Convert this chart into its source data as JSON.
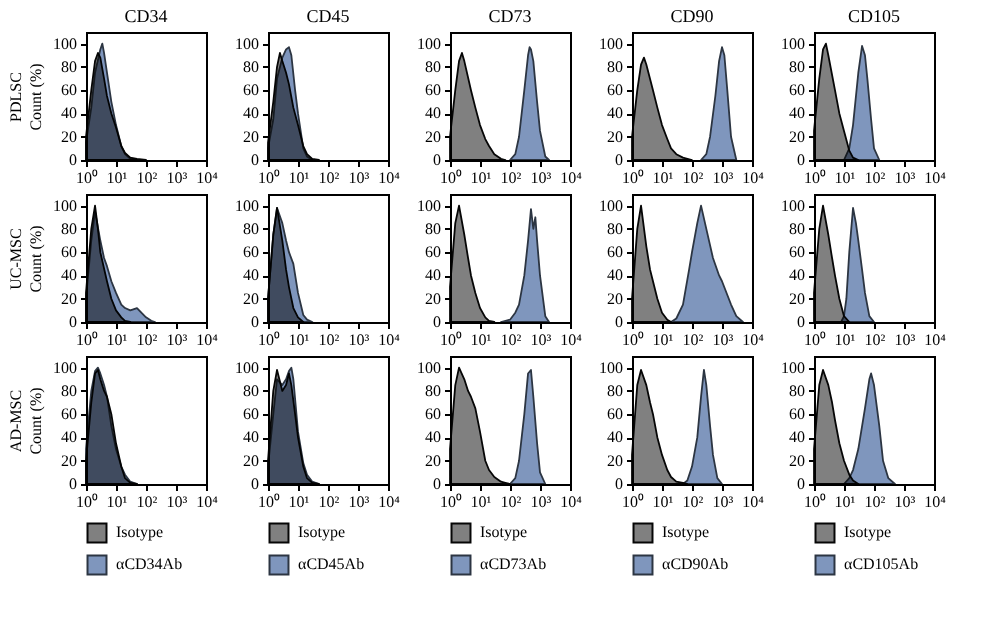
{
  "chart_data": [
    {
      "type": "area",
      "title": "CD34",
      "ylabel": "PDLSC\nCount (%)",
      "xlim": [
        1,
        10000
      ],
      "xticks": [
        {
          "value": 1,
          "label": "10⁰"
        },
        {
          "value": 10,
          "label": "10¹"
        },
        {
          "value": 100,
          "label": "10²"
        },
        {
          "value": 1000,
          "label": "10³"
        },
        {
          "value": 10000,
          "label": "10⁴"
        }
      ],
      "ylim": [
        0,
        110
      ],
      "yticks": [
        0,
        20,
        40,
        60,
        80,
        100
      ],
      "log": "x",
      "series": [
        {
          "color": "#808080",
          "x": [
            1,
            1.5,
            2,
            2.5,
            3,
            4,
            5,
            7,
            10,
            15,
            20,
            30,
            50,
            100
          ],
          "values": [
            20,
            60,
            85,
            92,
            88,
            70,
            55,
            40,
            28,
            12,
            6,
            2,
            1,
            0
          ]
        },
        {
          "color": "#7f96bd",
          "x": [
            1,
            1.5,
            2,
            3,
            3.5,
            4,
            5,
            7,
            10,
            15,
            20,
            30,
            50
          ],
          "values": [
            15,
            45,
            75,
            95,
            100,
            92,
            75,
            50,
            30,
            12,
            5,
            1,
            0
          ]
        }
      ]
    },
    {
      "type": "area",
      "title": "CD45",
      "xlim": [
        1,
        10000
      ],
      "xticks": [
        {
          "value": 1,
          "label": "10⁰"
        },
        {
          "value": 10,
          "label": "10¹"
        },
        {
          "value": 100,
          "label": "10²"
        },
        {
          "value": 1000,
          "label": "10³"
        },
        {
          "value": 10000,
          "label": "10⁴"
        }
      ],
      "ylim": [
        0,
        110
      ],
      "yticks": [
        0,
        20,
        40,
        60,
        80,
        100
      ],
      "log": "x",
      "series": [
        {
          "color": "#808080",
          "x": [
            1,
            1.5,
            2,
            2.5,
            3,
            4,
            5,
            7,
            10,
            15,
            20,
            30,
            50
          ],
          "values": [
            15,
            50,
            80,
            92,
            85,
            75,
            65,
            45,
            30,
            12,
            5,
            1,
            0
          ]
        },
        {
          "color": "#7f96bd",
          "x": [
            1,
            1.5,
            2,
            3,
            4,
            5,
            6,
            8,
            10,
            15,
            20,
            30
          ],
          "values": [
            10,
            35,
            70,
            88,
            95,
            97,
            90,
            60,
            40,
            10,
            3,
            0
          ]
        }
      ]
    },
    {
      "type": "area",
      "title": "CD73",
      "xlim": [
        1,
        10000
      ],
      "xticks": [
        {
          "value": 1,
          "label": "10⁰"
        },
        {
          "value": 10,
          "label": "10¹"
        },
        {
          "value": 100,
          "label": "10²"
        },
        {
          "value": 1000,
          "label": "10³"
        },
        {
          "value": 10000,
          "label": "10⁴"
        }
      ],
      "ylim": [
        0,
        110
      ],
      "yticks": [
        0,
        20,
        40,
        60,
        80,
        100
      ],
      "log": "x",
      "series": [
        {
          "color": "#808080",
          "x": [
            1,
            1.5,
            2,
            2.5,
            3,
            5,
            7,
            10,
            15,
            20,
            30,
            50,
            70
          ],
          "values": [
            20,
            60,
            85,
            92,
            85,
            60,
            45,
            30,
            18,
            12,
            5,
            1,
            0
          ]
        },
        {
          "color": "#7f96bd",
          "x": [
            100,
            150,
            200,
            300,
            400,
            450,
            500,
            600,
            800,
            1000,
            1500,
            2000
          ],
          "values": [
            0,
            5,
            20,
            60,
            90,
            97,
            95,
            85,
            50,
            25,
            3,
            0
          ]
        }
      ]
    },
    {
      "type": "area",
      "title": "CD90",
      "xlim": [
        1,
        10000
      ],
      "xticks": [
        {
          "value": 1,
          "label": "10⁰"
        },
        {
          "value": 10,
          "label": "10¹"
        },
        {
          "value": 100,
          "label": "10²"
        },
        {
          "value": 1000,
          "label": "10³"
        },
        {
          "value": 10000,
          "label": "10⁴"
        }
      ],
      "ylim": [
        0,
        110
      ],
      "yticks": [
        0,
        20,
        40,
        60,
        80,
        100
      ],
      "log": "x",
      "series": [
        {
          "color": "#808080",
          "x": [
            1,
            1.5,
            2,
            2.5,
            3,
            5,
            7,
            10,
            15,
            20,
            30,
            50,
            100
          ],
          "values": [
            20,
            60,
            82,
            88,
            82,
            60,
            45,
            30,
            18,
            10,
            5,
            2,
            0
          ]
        },
        {
          "color": "#7f96bd",
          "x": [
            200,
            300,
            400,
            600,
            800,
            1000,
            1200,
            1500,
            2000,
            3000
          ],
          "values": [
            0,
            5,
            20,
            55,
            85,
            97,
            90,
            60,
            20,
            0
          ]
        }
      ]
    },
    {
      "type": "area",
      "title": "CD105",
      "xlim": [
        1,
        10000
      ],
      "xticks": [
        {
          "value": 1,
          "label": "10⁰"
        },
        {
          "value": 10,
          "label": "10¹"
        },
        {
          "value": 100,
          "label": "10²"
        },
        {
          "value": 1000,
          "label": "10³"
        },
        {
          "value": 10000,
          "label": "10⁴"
        }
      ],
      "ylim": [
        0,
        110
      ],
      "yticks": [
        0,
        20,
        40,
        60,
        80,
        100
      ],
      "log": "x",
      "series": [
        {
          "color": "#808080",
          "x": [
            1,
            1.5,
            2,
            2.5,
            3,
            5,
            7,
            10,
            15,
            20,
            30
          ],
          "values": [
            25,
            70,
            95,
            100,
            90,
            60,
            40,
            25,
            8,
            2,
            0
          ]
        },
        {
          "color": "#7f96bd",
          "x": [
            10,
            15,
            20,
            30,
            40,
            50,
            60,
            80,
            100,
            150
          ],
          "values": [
            0,
            10,
            30,
            75,
            98,
            90,
            70,
            35,
            10,
            0
          ]
        }
      ]
    },
    {
      "type": "area",
      "ylabel": "UC-MSC\nCount (%)",
      "xlim": [
        1,
        10000
      ],
      "xticks": [
        {
          "value": 1,
          "label": "10⁰"
        },
        {
          "value": 10,
          "label": "10¹"
        },
        {
          "value": 100,
          "label": "10²"
        },
        {
          "value": 1000,
          "label": "10³"
        },
        {
          "value": 10000,
          "label": "10⁴"
        }
      ],
      "ylim": [
        0,
        110
      ],
      "yticks": [
        0,
        20,
        40,
        60,
        80,
        100
      ],
      "log": "x",
      "series": [
        {
          "color": "#808080",
          "x": [
            1,
            1.5,
            2,
            2.5,
            3,
            5,
            7,
            10,
            15,
            20,
            30
          ],
          "values": [
            25,
            80,
            100,
            80,
            60,
            35,
            20,
            10,
            4,
            1,
            0
          ]
        },
        {
          "color": "#7f96bd",
          "x": [
            1,
            1.5,
            2,
            3,
            4,
            5,
            7,
            10,
            15,
            20,
            30,
            50,
            70,
            100,
            150,
            200
          ],
          "values": [
            20,
            70,
            95,
            70,
            55,
            48,
            35,
            25,
            15,
            12,
            10,
            12,
            8,
            4,
            1,
            0
          ]
        }
      ]
    },
    {
      "type": "area",
      "xlim": [
        1,
        10000
      ],
      "xticks": [
        {
          "value": 1,
          "label": "10⁰"
        },
        {
          "value": 10,
          "label": "10¹"
        },
        {
          "value": 100,
          "label": "10²"
        },
        {
          "value": 1000,
          "label": "10³"
        },
        {
          "value": 10000,
          "label": "10⁴"
        }
      ],
      "ylim": [
        0,
        110
      ],
      "yticks": [
        0,
        20,
        40,
        60,
        80,
        100
      ],
      "log": "x",
      "series": [
        {
          "color": "#808080",
          "x": [
            1,
            1.5,
            2,
            3,
            4,
            5,
            7,
            10,
            15
          ],
          "values": [
            20,
            75,
            98,
            70,
            45,
            30,
            12,
            4,
            0
          ]
        },
        {
          "color": "#7f96bd",
          "x": [
            1,
            1.5,
            2,
            3,
            4,
            5,
            7,
            10,
            15,
            20,
            30
          ],
          "values": [
            20,
            75,
            98,
            85,
            70,
            60,
            50,
            25,
            6,
            2,
            0
          ]
        }
      ]
    },
    {
      "type": "area",
      "xlim": [
        1,
        10000
      ],
      "xticks": [
        {
          "value": 1,
          "label": "10⁰"
        },
        {
          "value": 10,
          "label": "10¹"
        },
        {
          "value": 100,
          "label": "10²"
        },
        {
          "value": 1000,
          "label": "10³"
        },
        {
          "value": 10000,
          "label": "10⁴"
        }
      ],
      "ylim": [
        0,
        110
      ],
      "yticks": [
        0,
        20,
        40,
        60,
        80,
        100
      ],
      "log": "x",
      "series": [
        {
          "color": "#808080",
          "x": [
            1,
            1.5,
            2,
            3,
            4,
            5,
            7,
            10,
            15,
            20,
            30
          ],
          "values": [
            30,
            85,
            100,
            75,
            55,
            40,
            25,
            12,
            4,
            1,
            0
          ]
        },
        {
          "color": "#7f96bd",
          "x": [
            50,
            100,
            150,
            200,
            300,
            400,
            500,
            600,
            700,
            800,
            1000,
            1500,
            2000
          ],
          "values": [
            0,
            2,
            8,
            15,
            40,
            70,
            97,
            80,
            90,
            70,
            40,
            5,
            0
          ]
        }
      ]
    },
    {
      "type": "area",
      "xlim": [
        1,
        10000
      ],
      "xticks": [
        {
          "value": 1,
          "label": "10⁰"
        },
        {
          "value": 10,
          "label": "10¹"
        },
        {
          "value": 100,
          "label": "10²"
        },
        {
          "value": 1000,
          "label": "10³"
        },
        {
          "value": 10000,
          "label": "10⁴"
        }
      ],
      "ylim": [
        0,
        110
      ],
      "yticks": [
        0,
        20,
        40,
        60,
        80,
        100
      ],
      "log": "x",
      "series": [
        {
          "color": "#808080",
          "x": [
            1,
            1.5,
            2,
            3,
            4,
            5,
            7,
            10,
            15,
            20
          ],
          "values": [
            20,
            80,
            100,
            65,
            45,
            35,
            20,
            8,
            2,
            0
          ]
        },
        {
          "color": "#7f96bd",
          "x": [
            20,
            30,
            50,
            80,
            100,
            150,
            200,
            300,
            500,
            800,
            1000,
            2000,
            3000,
            5000
          ],
          "values": [
            0,
            3,
            15,
            45,
            60,
            85,
            100,
            80,
            55,
            40,
            35,
            15,
            5,
            0
          ]
        }
      ]
    },
    {
      "type": "area",
      "xlim": [
        1,
        10000
      ],
      "xticks": [
        {
          "value": 1,
          "label": "10⁰"
        },
        {
          "value": 10,
          "label": "10¹"
        },
        {
          "value": 100,
          "label": "10²"
        },
        {
          "value": 1000,
          "label": "10³"
        },
        {
          "value": 10000,
          "label": "10⁴"
        }
      ],
      "ylim": [
        0,
        110
      ],
      "yticks": [
        0,
        20,
        40,
        60,
        80,
        100
      ],
      "log": "x",
      "series": [
        {
          "color": "#808080",
          "x": [
            1,
            1.5,
            2,
            3,
            4,
            5,
            7,
            10,
            15
          ],
          "values": [
            25,
            80,
            100,
            75,
            55,
            40,
            20,
            5,
            0
          ]
        },
        {
          "color": "#7f96bd",
          "x": [
            8,
            10,
            12,
            15,
            20,
            25,
            30,
            40,
            50,
            70,
            100
          ],
          "values": [
            0,
            5,
            20,
            60,
            98,
            85,
            70,
            45,
            25,
            5,
            0
          ]
        }
      ]
    },
    {
      "type": "area",
      "ylabel": "AD-MSC\nCount (%)",
      "legend": "bottom",
      "xlim": [
        1,
        10000
      ],
      "xticks": [
        {
          "value": 1,
          "label": "10⁰"
        },
        {
          "value": 10,
          "label": "10¹"
        },
        {
          "value": 100,
          "label": "10²"
        },
        {
          "value": 1000,
          "label": "10³"
        },
        {
          "value": 10000,
          "label": "10⁴"
        }
      ],
      "ylim": [
        0,
        110
      ],
      "yticks": [
        0,
        20,
        40,
        60,
        80,
        100
      ],
      "log": "x",
      "series": [
        {
          "name": "Isotype",
          "color": "#808080",
          "x": [
            1,
            1.5,
            2,
            2.5,
            3,
            4,
            5,
            7,
            10,
            15,
            20,
            30,
            50
          ],
          "values": [
            20,
            70,
            95,
            98,
            90,
            80,
            75,
            60,
            35,
            15,
            5,
            1,
            0
          ]
        },
        {
          "name": "αCD34Ab",
          "color": "#7f96bd",
          "x": [
            1,
            1.5,
            2,
            2.5,
            3,
            4,
            5,
            7,
            10,
            15,
            20,
            30,
            50
          ],
          "values": [
            30,
            80,
            97,
            100,
            95,
            85,
            75,
            50,
            30,
            15,
            8,
            2,
            0
          ]
        }
      ]
    },
    {
      "type": "area",
      "legend": "bottom",
      "xlim": [
        1,
        10000
      ],
      "xticks": [
        {
          "value": 1,
          "label": "10⁰"
        },
        {
          "value": 10,
          "label": "10¹"
        },
        {
          "value": 100,
          "label": "10²"
        },
        {
          "value": 1000,
          "label": "10³"
        },
        {
          "value": 10000,
          "label": "10⁴"
        }
      ],
      "ylim": [
        0,
        110
      ],
      "yticks": [
        0,
        20,
        40,
        60,
        80,
        100
      ],
      "log": "x",
      "series": [
        {
          "name": "Isotype",
          "color": "#808080",
          "x": [
            1,
            1.5,
            2,
            3,
            4,
            5,
            6,
            8,
            10,
            15,
            20,
            30,
            50
          ],
          "values": [
            20,
            80,
            98,
            80,
            85,
            95,
            85,
            60,
            40,
            15,
            5,
            1,
            0
          ]
        },
        {
          "name": "αCD45Ab",
          "color": "#7f96bd",
          "x": [
            1,
            1.5,
            2,
            3,
            4,
            5,
            6,
            7,
            10,
            15,
            20,
            30,
            50
          ],
          "values": [
            15,
            60,
            90,
            85,
            90,
            97,
            100,
            90,
            45,
            18,
            8,
            2,
            0
          ]
        }
      ]
    },
    {
      "type": "area",
      "legend": "bottom",
      "xlim": [
        1,
        10000
      ],
      "xticks": [
        {
          "value": 1,
          "label": "10⁰"
        },
        {
          "value": 10,
          "label": "10¹"
        },
        {
          "value": 100,
          "label": "10²"
        },
        {
          "value": 1000,
          "label": "10³"
        },
        {
          "value": 10000,
          "label": "10⁴"
        }
      ],
      "ylim": [
        0,
        110
      ],
      "yticks": [
        0,
        20,
        40,
        60,
        80,
        100
      ],
      "log": "x",
      "series": [
        {
          "name": "Isotype",
          "color": "#808080",
          "x": [
            1,
            1.5,
            2,
            3,
            4,
            5,
            7,
            10,
            15,
            20,
            30,
            50,
            70,
            100
          ],
          "values": [
            30,
            85,
            100,
            90,
            80,
            75,
            65,
            45,
            20,
            12,
            6,
            2,
            1,
            0
          ]
        },
        {
          "name": "αCD73Ab",
          "color": "#7f96bd",
          "x": [
            100,
            150,
            200,
            300,
            400,
            500,
            600,
            800,
            1000,
            1500
          ],
          "values": [
            0,
            5,
            20,
            60,
            95,
            98,
            75,
            35,
            10,
            0
          ]
        }
      ]
    },
    {
      "type": "area",
      "legend": "bottom",
      "xlim": [
        1,
        10000
      ],
      "xticks": [
        {
          "value": 1,
          "label": "10⁰"
        },
        {
          "value": 10,
          "label": "10¹"
        },
        {
          "value": 100,
          "label": "10²"
        },
        {
          "value": 1000,
          "label": "10³"
        },
        {
          "value": 10000,
          "label": "10⁴"
        }
      ],
      "ylim": [
        0,
        110
      ],
      "yticks": [
        0,
        20,
        40,
        60,
        80,
        100
      ],
      "log": "x",
      "series": [
        {
          "name": "Isotype",
          "color": "#808080",
          "x": [
            1,
            1.5,
            2,
            3,
            4,
            5,
            7,
            10,
            15,
            20,
            30,
            50,
            70
          ],
          "values": [
            25,
            85,
            98,
            85,
            70,
            60,
            40,
            25,
            12,
            6,
            2,
            1,
            0
          ]
        },
        {
          "name": "αCD90Ab",
          "color": "#7f96bd",
          "x": [
            50,
            70,
            100,
            150,
            200,
            250,
            300,
            400,
            500,
            700,
            1000
          ],
          "values": [
            0,
            3,
            15,
            40,
            75,
            98,
            85,
            50,
            25,
            5,
            0
          ]
        }
      ]
    },
    {
      "type": "area",
      "legend": "bottom",
      "xlim": [
        1,
        10000
      ],
      "xticks": [
        {
          "value": 1,
          "label": "10⁰"
        },
        {
          "value": 10,
          "label": "10¹"
        },
        {
          "value": 100,
          "label": "10²"
        },
        {
          "value": 1000,
          "label": "10³"
        },
        {
          "value": 10000,
          "label": "10⁴"
        }
      ],
      "ylim": [
        0,
        110
      ],
      "yticks": [
        0,
        20,
        40,
        60,
        80,
        100
      ],
      "log": "x",
      "series": [
        {
          "name": "Isotype",
          "color": "#808080",
          "x": [
            1,
            1.5,
            2,
            3,
            4,
            5,
            7,
            10,
            15,
            20,
            30
          ],
          "values": [
            30,
            85,
            98,
            85,
            70,
            55,
            35,
            20,
            8,
            3,
            0
          ]
        },
        {
          "name": "αCD105Ab",
          "color": "#7f96bd",
          "x": [
            10,
            15,
            20,
            30,
            50,
            70,
            80,
            100,
            150,
            200,
            300,
            500
          ],
          "values": [
            0,
            5,
            12,
            30,
            65,
            90,
            95,
            85,
            50,
            20,
            5,
            0
          ]
        }
      ]
    }
  ]
}
